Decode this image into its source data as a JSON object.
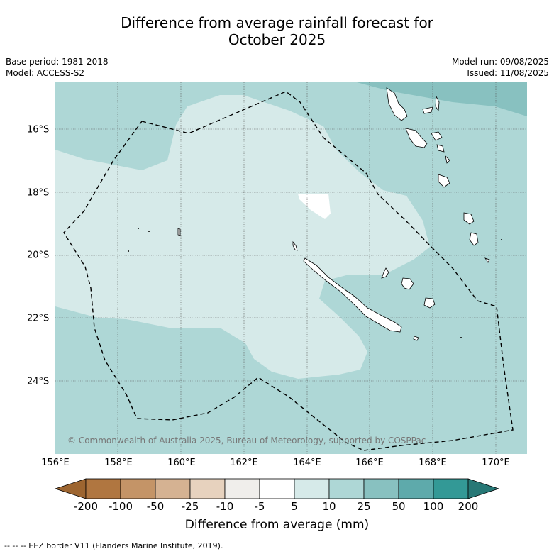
{
  "title_line1": "Difference from average rainfall forecast for",
  "title_line2": "October 2025",
  "meta": {
    "base_period": "Base period: 1981-2018",
    "model": "Model: ACCESS-S2",
    "model_run": "Model run: 09/08/2025",
    "issued": "Issued: 11/08/2025"
  },
  "map": {
    "copyright": "© Commonwealth of Australia 2025, Bureau of Meteorology, supported by COSPPac",
    "lon_ticks": [
      "156°E",
      "158°E",
      "160°E",
      "162°E",
      "164°E",
      "166°E",
      "168°E",
      "170°E"
    ],
    "lat_ticks": [
      "16°S",
      "18°S",
      "20°S",
      "22°S",
      "24°S"
    ],
    "colors": {
      "band_5_10": "#d6eae9",
      "band_10_25": "#aed7d6",
      "band_25_50": "#88c1c0",
      "no_change": "#ffffff",
      "border": "#000000",
      "grid": "#555555"
    }
  },
  "colorbar": {
    "title": "Difference from average (mm)",
    "labels": [
      "-200",
      "-100",
      "-50",
      "-25",
      "-10",
      "-5",
      "5",
      "10",
      "25",
      "50",
      "100",
      "200"
    ],
    "colors": [
      "#9d6530",
      "#b07640",
      "#c49467",
      "#d5b292",
      "#e7d2be",
      "#f0eeeb",
      "#ffffff",
      "#d6eae9",
      "#aed7d6",
      "#88c1c0",
      "#5eaaab",
      "#339996",
      "#277876"
    ]
  },
  "footnote": "--  --  -- EEZ border V11 (Flanders Marine Institute, 2019)."
}
